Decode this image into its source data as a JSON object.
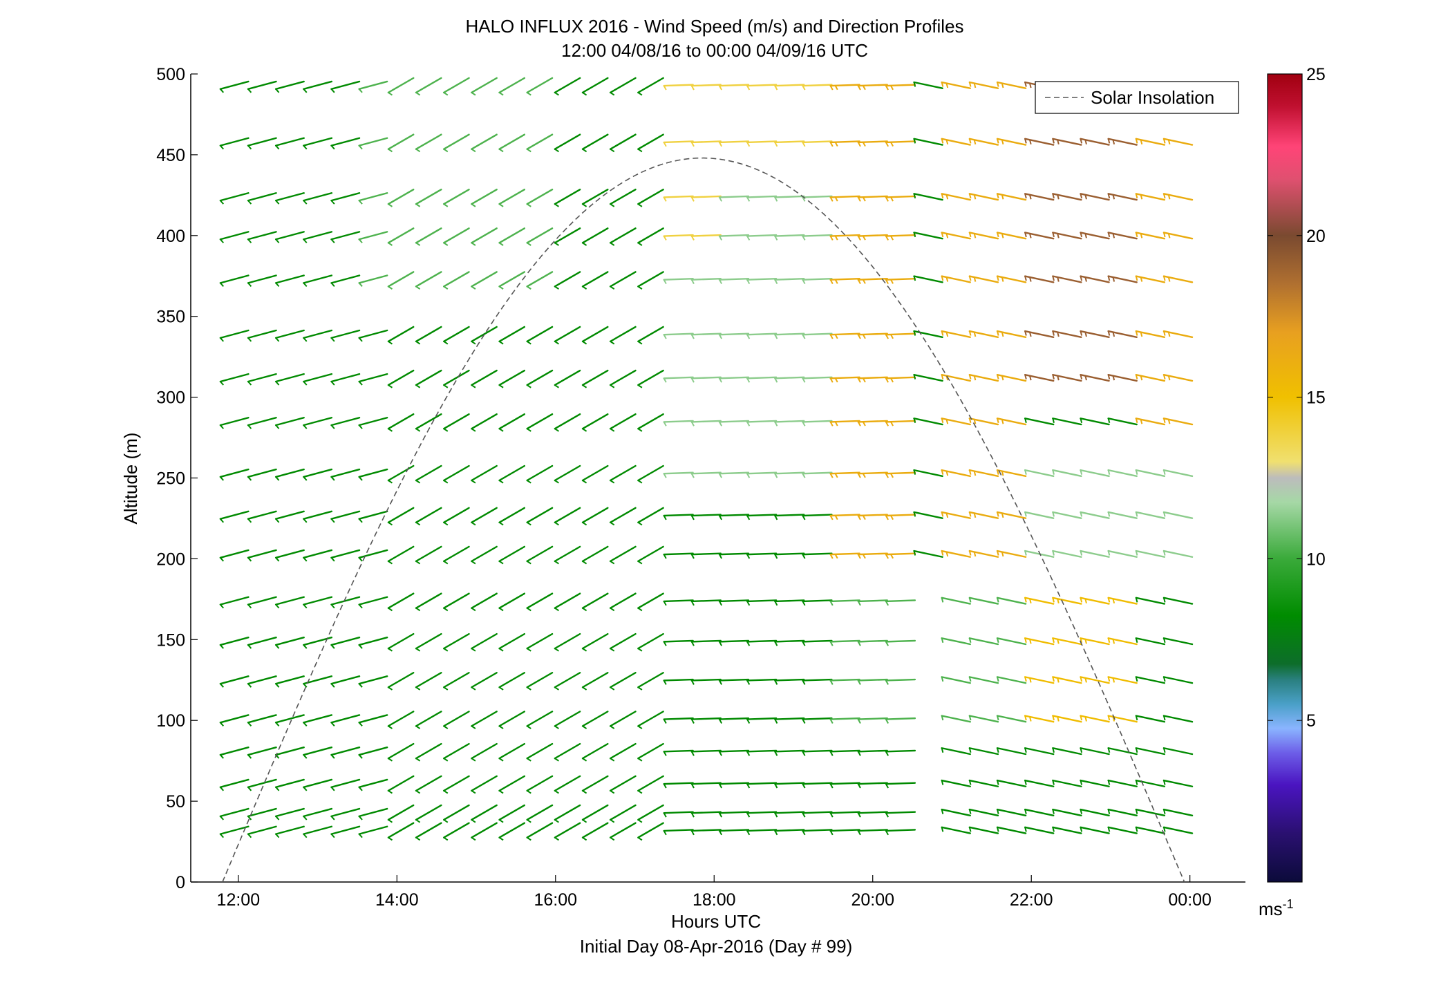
{
  "chart_data": {
    "type": "wind_barb_profile",
    "title": "HALO INFLUX 2016 - Wind Speed (m/s) and Direction Profiles",
    "subtitle": "12:00 04/08/16 to 00:00 04/09/16  UTC",
    "xlabel": "Hours UTC",
    "xlabel_sub": "Initial Day 08-Apr-2016 (Day # 99)",
    "ylabel": "Altitude (m)",
    "xlim": [
      11.4,
      24.7
    ],
    "ylim": [
      0,
      500
    ],
    "x_ticks": [
      12,
      14,
      16,
      18,
      20,
      22,
      24
    ],
    "x_tick_labels": [
      "12:00",
      "14:00",
      "16:00",
      "18:00",
      "20:00",
      "22:00",
      "00:00"
    ],
    "y_ticks": [
      0,
      50,
      100,
      150,
      200,
      250,
      300,
      350,
      400,
      450,
      500
    ],
    "y_tick_labels": [
      "0",
      "50",
      "100",
      "150",
      "200",
      "250",
      "300",
      "350",
      "400",
      "450",
      "500"
    ],
    "colorbar": {
      "range": [
        0,
        25
      ],
      "ticks": [
        5,
        10,
        15,
        20,
        25
      ],
      "tick_labels": [
        "5",
        "10",
        "15",
        "20",
        "25"
      ],
      "unit_label": "ms",
      "unit_exponent": "-1"
    },
    "legend": {
      "position": "top-right",
      "entries": [
        {
          "label": "Solar Insolation",
          "style": "dashed",
          "color": "#555555"
        }
      ]
    },
    "solar_insolation": {
      "start_hour": 11.8,
      "end_hour": 23.93,
      "peak_hour": 17.85,
      "peak_altitude": 448
    },
    "altitudes": [
      32,
      43,
      61,
      81,
      101,
      125,
      149,
      174,
      203,
      227,
      253,
      285,
      312,
      339,
      373,
      400,
      424,
      458,
      493
    ],
    "times": [
      11.95,
      12.3,
      12.65,
      13.0,
      13.35,
      13.7,
      14.05,
      14.4,
      14.75,
      15.1,
      15.45,
      15.8,
      16.15,
      16.5,
      16.85,
      17.2,
      17.55,
      17.9,
      18.25,
      18.6,
      18.95,
      19.3,
      19.65,
      20.0,
      20.35,
      20.7,
      21.05,
      21.4,
      21.75,
      22.1,
      22.45,
      22.8,
      23.15,
      23.5,
      23.85
    ],
    "direction_phases": [
      {
        "until_hour": 14.0,
        "from_deg": 255
      },
      {
        "until_hour": 17.3,
        "from_deg": 240
      },
      {
        "until_hour": 20.6,
        "from_deg": 268
      },
      {
        "until_hour": 24.0,
        "from_deg": 282
      }
    ],
    "data_gaps": [
      {
        "start_hour": 20.45,
        "end_hour": 20.8,
        "min_alt": 0,
        "max_alt": 190
      }
    ],
    "speed_segments": [
      {
        "t0": 11.9,
        "t1": 13.7,
        "a0": 0,
        "a1": 95,
        "speed": 4
      },
      {
        "t0": 13.7,
        "t1": 14.8,
        "a0": 0,
        "a1": 110,
        "speed": 4
      },
      {
        "t0": 12.6,
        "t1": 15.0,
        "a0": 95,
        "a1": 200,
        "speed": 5
      },
      {
        "t0": 14.8,
        "t1": 17.3,
        "a0": 0,
        "a1": 50,
        "speed": 5
      },
      {
        "t0": 11.9,
        "t1": 17.3,
        "a0": 0,
        "a1": 500,
        "speed": 8
      },
      {
        "t0": 13.4,
        "t1": 16.0,
        "a0": 350,
        "a1": 500,
        "speed": 10
      },
      {
        "t0": 17.4,
        "t1": 18.1,
        "a0": 0,
        "a1": 45,
        "speed": 5
      },
      {
        "t0": 17.4,
        "t1": 19.6,
        "a0": 0,
        "a1": 500,
        "speed": 8
      },
      {
        "t0": 17.4,
        "t1": 19.6,
        "a0": 230,
        "a1": 500,
        "speed": 11
      },
      {
        "t0": 17.4,
        "t1": 18.0,
        "a0": 400,
        "a1": 500,
        "speed": 14
      },
      {
        "t0": 18.0,
        "t1": 19.6,
        "a0": 430,
        "a1": 500,
        "speed": 14
      },
      {
        "t0": 19.6,
        "t1": 20.45,
        "a0": 180,
        "a1": 500,
        "speed": 16
      },
      {
        "t0": 20.8,
        "t1": 22.0,
        "a0": 190,
        "a1": 500,
        "speed": 16
      },
      {
        "t0": 19.6,
        "t1": 24.0,
        "a0": 0,
        "a1": 100,
        "speed": 8
      },
      {
        "t0": 19.6,
        "t1": 22.0,
        "a0": 100,
        "a1": 190,
        "speed": 10
      },
      {
        "t0": 22.0,
        "t1": 23.2,
        "a0": 100,
        "a1": 180,
        "speed": 15
      },
      {
        "t0": 22.0,
        "t1": 24.0,
        "a0": 180,
        "a1": 260,
        "speed": 11
      },
      {
        "t0": 22.0,
        "t1": 23.3,
        "a0": 300,
        "a1": 500,
        "speed": 19
      },
      {
        "t0": 23.3,
        "t1": 24.0,
        "a0": 260,
        "a1": 500,
        "speed": 16
      }
    ]
  }
}
